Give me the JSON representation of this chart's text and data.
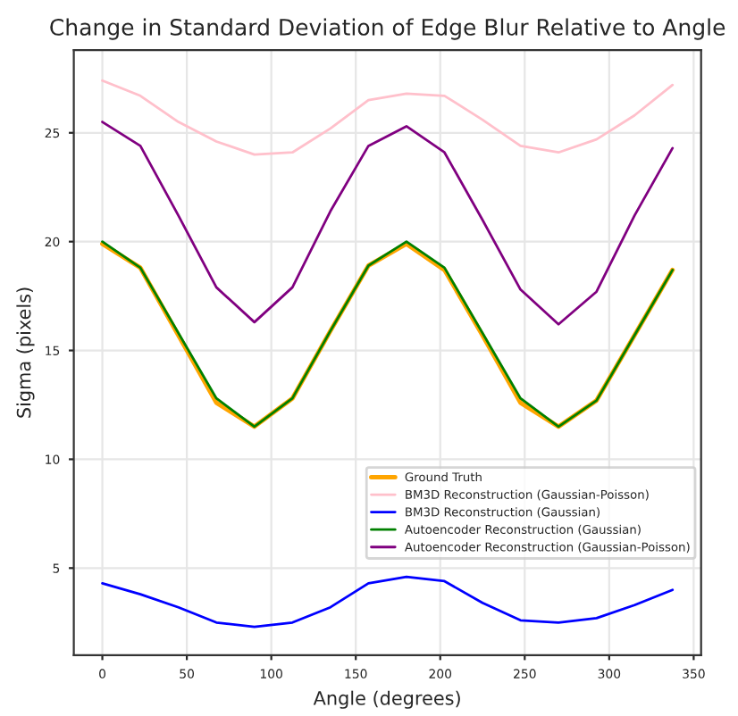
{
  "chart_data": {
    "type": "line",
    "title": "Change in Standard Deviation of Edge Blur Relative to Angle",
    "xlabel": "Angle (degrees)",
    "ylabel": "Sigma (pixels)",
    "x": [
      0,
      22.5,
      45,
      67.5,
      90,
      112.5,
      135,
      157.5,
      180,
      202.5,
      225,
      247.5,
      270,
      292.5,
      315,
      337.5
    ],
    "series": [
      {
        "name": "Ground Truth",
        "color": "#ffa500",
        "values": [
          19.9,
          18.8,
          15.7,
          12.6,
          11.5,
          12.8,
          15.9,
          18.9,
          19.9,
          18.7,
          15.7,
          12.6,
          11.5,
          12.7,
          15.7,
          18.7
        ]
      },
      {
        "name": "BM3D Reconstruction (Gaussian-Poisson)",
        "color": "#ffc0cb",
        "values": [
          27.4,
          26.7,
          25.5,
          24.6,
          24.0,
          24.1,
          25.2,
          26.5,
          26.8,
          26.7,
          25.6,
          24.4,
          24.1,
          24.7,
          25.8,
          27.2
        ]
      },
      {
        "name": "BM3D Reconstruction (Gaussian)",
        "color": "#0000ff",
        "values": [
          4.3,
          3.8,
          3.2,
          2.5,
          2.3,
          2.5,
          3.2,
          4.3,
          4.6,
          4.4,
          3.4,
          2.6,
          2.5,
          2.7,
          3.3,
          4.0
        ]
      },
      {
        "name": "Autoencoder Reconstruction (Gaussian)",
        "color": "#008000",
        "values": [
          20.0,
          18.8,
          15.8,
          12.8,
          11.5,
          12.8,
          15.9,
          18.9,
          20.0,
          18.8,
          15.8,
          12.8,
          11.5,
          12.7,
          15.7,
          18.7
        ]
      },
      {
        "name": "Autoencoder Reconstruction (Gaussian-Poisson)",
        "color": "#800080",
        "values": [
          25.5,
          24.4,
          21.2,
          17.9,
          16.3,
          17.9,
          21.4,
          24.4,
          25.3,
          24.1,
          21.0,
          17.8,
          16.2,
          17.7,
          21.2,
          24.3
        ]
      }
    ],
    "xlim": [
      -16.9,
      354.4
    ],
    "ylim": [
      1.0,
      28.8
    ],
    "xticks": [
      0,
      50,
      100,
      150,
      200,
      250,
      300,
      350
    ],
    "yticks": [
      5,
      10,
      15,
      20,
      25
    ],
    "grid": true,
    "legend": "bottom right",
    "marker": "none",
    "line_style": "solid"
  }
}
